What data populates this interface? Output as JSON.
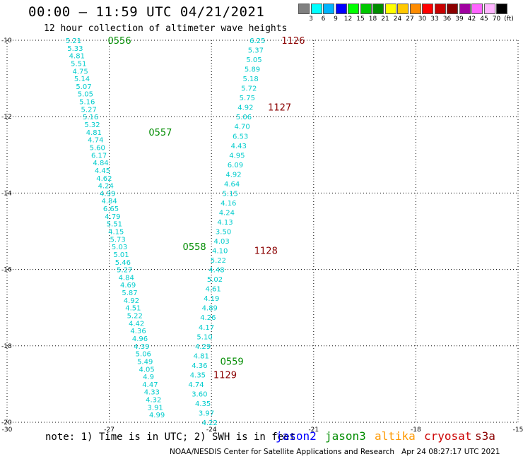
{
  "header": {
    "title": "00:00 – 11:59 UTC 04/21/2021",
    "subtitle": "12 hour collection of altimeter wave heights"
  },
  "colorbar": {
    "labels": [
      "3",
      "6",
      "9",
      "12",
      "15",
      "18",
      "21",
      "24",
      "27",
      "30",
      "33",
      "36",
      "39",
      "42",
      "45",
      "70",
      "(ft)"
    ],
    "colors": [
      "#808080",
      "#00ffff",
      "#00b4ff",
      "#0000ff",
      "#00ff00",
      "#00c800",
      "#008c00",
      "#ffff00",
      "#ffc800",
      "#ff8c00",
      "#ff0000",
      "#c80000",
      "#8c0000",
      "#a000a0",
      "#ff64ff",
      "#ffb4ff",
      "#000000"
    ]
  },
  "footer": {
    "note": "note: 1) Time is in UTC; 2) SWH is in feet",
    "satellites": [
      {
        "name": "jason2",
        "color": "#0000ff"
      },
      {
        "name": "jason3",
        "color": "#008c00"
      },
      {
        "name": "altika",
        "color": "#ff9900"
      },
      {
        "name": "cryosat",
        "color": "#cc0000"
      },
      {
        "name": "s3a",
        "color": "#8b0000"
      }
    ],
    "credit": "NOAA/NESDIS Center for Satellite Applications and Research   Apr 24 08:27:17 UTC 2021"
  },
  "chart_data": {
    "type": "scatter",
    "xlim": [
      -30,
      -15
    ],
    "ylim": [
      -20,
      -10
    ],
    "xticks": [
      -30,
      -27,
      -24,
      -21,
      -18,
      -15
    ],
    "yticks": [
      -10,
      -12,
      -14,
      -16,
      -18,
      -20
    ],
    "xticklabels": [
      "-30",
      "-27",
      "-24",
      "-21",
      "-18",
      "-15"
    ],
    "yticklabels": [
      "-10",
      "-12",
      "-14",
      "-16",
      "-18",
      "-20"
    ],
    "grid": true,
    "value_color": "#00cccc",
    "series": [
      {
        "name": "jason3",
        "color": "#008c00",
        "points": [
          {
            "x": -28.05,
            "y": -10.0,
            "v": "5.21"
          },
          {
            "x": -28.0,
            "y": -10.2,
            "v": "5.33"
          },
          {
            "x": -27.95,
            "y": -10.4,
            "v": "4.81"
          },
          {
            "x": -27.9,
            "y": -10.6,
            "v": "5.51"
          },
          {
            "x": -27.85,
            "y": -10.8,
            "v": "4.75"
          },
          {
            "x": -27.8,
            "y": -11.0,
            "v": "5.14"
          },
          {
            "x": -27.75,
            "y": -11.2,
            "v": "5.07"
          },
          {
            "x": -27.7,
            "y": -11.4,
            "v": "5.05"
          },
          {
            "x": -27.65,
            "y": -11.6,
            "v": "5.16"
          },
          {
            "x": -27.6,
            "y": -11.8,
            "v": "5.27"
          },
          {
            "x": -27.55,
            "y": -12.0,
            "v": "5.16"
          },
          {
            "x": -27.5,
            "y": -12.2,
            "v": "5.32"
          },
          {
            "x": -27.45,
            "y": -12.4,
            "v": "4.81"
          },
          {
            "x": -27.4,
            "y": -12.6,
            "v": "4.74"
          },
          {
            "x": -27.35,
            "y": -12.8,
            "v": "5.60"
          },
          {
            "x": -27.3,
            "y": -13.0,
            "v": "6.17"
          },
          {
            "x": -27.25,
            "y": -13.2,
            "v": "4.84"
          },
          {
            "x": -27.2,
            "y": -13.4,
            "v": "4.45"
          },
          {
            "x": -27.15,
            "y": -13.6,
            "v": "4.62"
          },
          {
            "x": -27.1,
            "y": -13.8,
            "v": "4.24"
          },
          {
            "x": -27.05,
            "y": -14.0,
            "v": "4.99"
          },
          {
            "x": -27.0,
            "y": -14.2,
            "v": "4.84"
          },
          {
            "x": -26.95,
            "y": -14.4,
            "v": "6.65"
          },
          {
            "x": -26.9,
            "y": -14.6,
            "v": "4.79"
          },
          {
            "x": -26.85,
            "y": -14.8,
            "v": "5.51"
          },
          {
            "x": -26.8,
            "y": -15.0,
            "v": "4.15"
          },
          {
            "x": -26.75,
            "y": -15.2,
            "v": "5.73"
          },
          {
            "x": -26.7,
            "y": -15.4,
            "v": "5.03"
          },
          {
            "x": -26.65,
            "y": -15.6,
            "v": "5.01"
          },
          {
            "x": -26.6,
            "y": -15.8,
            "v": "5.46"
          },
          {
            "x": -26.55,
            "y": -16.0,
            "v": "5.27"
          },
          {
            "x": -26.5,
            "y": -16.2,
            "v": "4.84"
          },
          {
            "x": -26.45,
            "y": -16.4,
            "v": "4.69"
          },
          {
            "x": -26.4,
            "y": -16.6,
            "v": "5.87"
          },
          {
            "x": -26.35,
            "y": -16.8,
            "v": "4.92"
          },
          {
            "x": -26.3,
            "y": -17.0,
            "v": "4.51"
          },
          {
            "x": -26.25,
            "y": -17.2,
            "v": "5.22"
          },
          {
            "x": -26.2,
            "y": -17.4,
            "v": "4.42"
          },
          {
            "x": -26.15,
            "y": -17.6,
            "v": "4.36"
          },
          {
            "x": -26.1,
            "y": -17.8,
            "v": "4.96"
          },
          {
            "x": -26.05,
            "y": -18.0,
            "v": "4.39"
          },
          {
            "x": -26.0,
            "y": -18.2,
            "v": "5.06"
          },
          {
            "x": -25.95,
            "y": -18.4,
            "v": "5.49"
          },
          {
            "x": -25.9,
            "y": -18.6,
            "v": "4.05"
          },
          {
            "x": -25.85,
            "y": -18.8,
            "v": "4.9"
          },
          {
            "x": -25.8,
            "y": -19.0,
            "v": "4.47"
          },
          {
            "x": -25.75,
            "y": -19.2,
            "v": "4.33"
          },
          {
            "x": -25.7,
            "y": -19.4,
            "v": "4.32"
          },
          {
            "x": -25.65,
            "y": -19.6,
            "v": "3.91"
          },
          {
            "x": -25.6,
            "y": -19.8,
            "v": "4.99"
          }
        ],
        "time_labels": [
          {
            "x": -26.7,
            "y": -10.0,
            "text": "0556"
          },
          {
            "x": -25.5,
            "y": -12.4,
            "text": "0557"
          },
          {
            "x": -24.5,
            "y": -15.4,
            "text": "0558"
          },
          {
            "x": -23.4,
            "y": -18.4,
            "text": "0559"
          }
        ]
      },
      {
        "name": "s3a",
        "color": "#8b0000",
        "points": [
          {
            "x": -22.65,
            "y": -10.0,
            "v": "6.25"
          },
          {
            "x": -22.7,
            "y": -10.25,
            "v": "5.37"
          },
          {
            "x": -22.75,
            "y": -10.5,
            "v": "5.05"
          },
          {
            "x": -22.8,
            "y": -10.75,
            "v": "5.89"
          },
          {
            "x": -22.85,
            "y": -11.0,
            "v": "5.18"
          },
          {
            "x": -22.9,
            "y": -11.25,
            "v": "5.72"
          },
          {
            "x": -22.95,
            "y": -11.5,
            "v": "5.75"
          },
          {
            "x": -23.0,
            "y": -11.75,
            "v": "4.92"
          },
          {
            "x": -23.05,
            "y": -12.0,
            "v": "5.06"
          },
          {
            "x": -23.1,
            "y": -12.25,
            "v": "4.70"
          },
          {
            "x": -23.15,
            "y": -12.5,
            "v": "6.53"
          },
          {
            "x": -23.2,
            "y": -12.75,
            "v": "4.43"
          },
          {
            "x": -23.25,
            "y": -13.0,
            "v": "4.95"
          },
          {
            "x": -23.3,
            "y": -13.25,
            "v": "6.09"
          },
          {
            "x": -23.35,
            "y": -13.5,
            "v": "4.92"
          },
          {
            "x": -23.4,
            "y": -13.75,
            "v": "4.64"
          },
          {
            "x": -23.45,
            "y": -14.0,
            "v": "5.15"
          },
          {
            "x": -23.5,
            "y": -14.25,
            "v": "4.16"
          },
          {
            "x": -23.55,
            "y": -14.5,
            "v": "4.24"
          },
          {
            "x": -23.6,
            "y": -14.75,
            "v": "4.13"
          },
          {
            "x": -23.65,
            "y": -15.0,
            "v": "3.50"
          },
          {
            "x": -23.7,
            "y": -15.25,
            "v": "4.03"
          },
          {
            "x": -23.75,
            "y": -15.5,
            "v": "4.10"
          },
          {
            "x": -23.8,
            "y": -15.75,
            "v": "5.22"
          },
          {
            "x": -23.85,
            "y": -16.0,
            "v": "4.48"
          },
          {
            "x": -23.9,
            "y": -16.25,
            "v": "5.02"
          },
          {
            "x": -23.95,
            "y": -16.5,
            "v": "4.61"
          },
          {
            "x": -24.0,
            "y": -16.75,
            "v": "4.19"
          },
          {
            "x": -24.05,
            "y": -17.0,
            "v": "4.89"
          },
          {
            "x": -24.1,
            "y": -17.25,
            "v": "4.26"
          },
          {
            "x": -24.15,
            "y": -17.5,
            "v": "4.17"
          },
          {
            "x": -24.2,
            "y": -17.75,
            "v": "5.10"
          },
          {
            "x": -24.25,
            "y": -18.0,
            "v": "4.29"
          },
          {
            "x": -24.3,
            "y": -18.25,
            "v": "4.81"
          },
          {
            "x": -24.35,
            "y": -18.5,
            "v": "4.36"
          },
          {
            "x": -24.4,
            "y": -18.75,
            "v": "4.35"
          },
          {
            "x": -24.45,
            "y": -19.0,
            "v": "4.74"
          },
          {
            "x": -24.35,
            "y": -19.25,
            "v": "3.60"
          },
          {
            "x": -24.25,
            "y": -19.5,
            "v": "4.35"
          },
          {
            "x": -24.15,
            "y": -19.75,
            "v": "3.97"
          },
          {
            "x": -24.05,
            "y": -20.0,
            "v": "4.22"
          }
        ],
        "time_labels": [
          {
            "x": -21.6,
            "y": -10.0,
            "text": "1126"
          },
          {
            "x": -22.0,
            "y": -11.75,
            "text": "1127"
          },
          {
            "x": -22.4,
            "y": -15.5,
            "text": "1128"
          },
          {
            "x": -23.6,
            "y": -18.75,
            "text": "1129"
          }
        ]
      }
    ]
  }
}
